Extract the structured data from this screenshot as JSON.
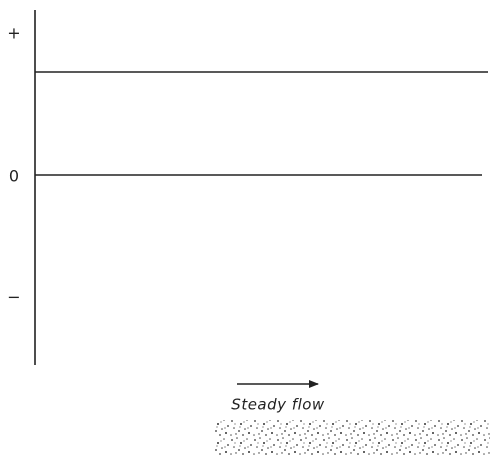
{
  "axis": {
    "labels": [
      "+",
      "0",
      "−"
    ]
  },
  "caption": "Steady flow"
}
